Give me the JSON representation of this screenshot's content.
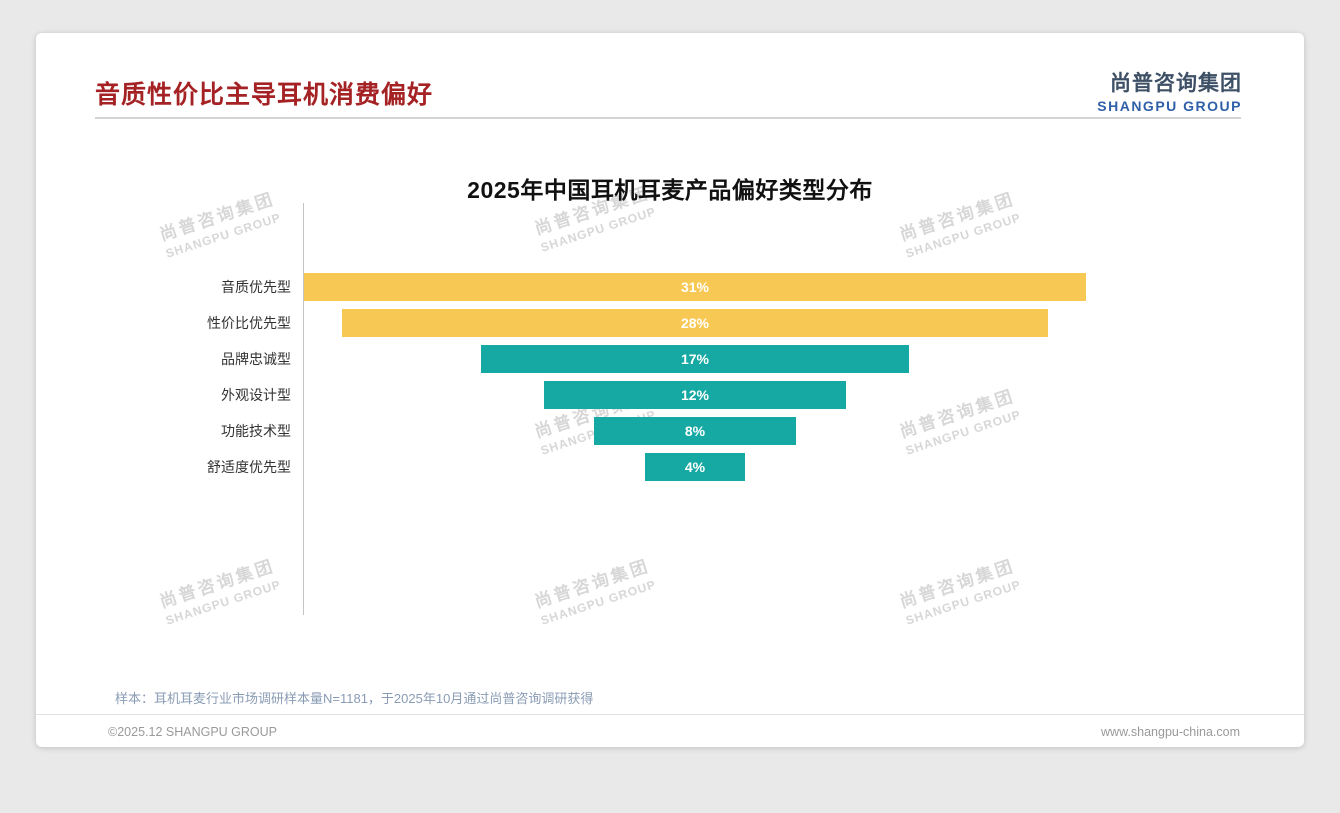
{
  "header": {
    "title": "音质性价比主导耳机消费偏好",
    "logo_cn": "尚普咨询集团",
    "logo_en": "SHANGPU GROUP"
  },
  "watermark": {
    "cn": "尚普咨询集团",
    "en": "SHANGPU GROUP"
  },
  "chart_data": {
    "type": "bar",
    "variant": "horizontal-centered-funnel",
    "title": "2025年中国耳机耳麦产品偏好类型分布",
    "categories": [
      "音质优先型",
      "性价比优先型",
      "品牌忠诚型",
      "外观设计型",
      "功能技术型",
      "舒适度优先型"
    ],
    "values": [
      31,
      28,
      17,
      12,
      8,
      4
    ],
    "value_labels": [
      "31%",
      "28%",
      "17%",
      "12%",
      "8%",
      "4%"
    ],
    "unit": "%",
    "bar_colors": [
      "#F8C855",
      "#F8C855",
      "#16A8A2",
      "#16A8A2",
      "#16A8A2",
      "#16A8A2"
    ],
    "bar_label_color": "#FFFFFF",
    "xlim": [
      0,
      31
    ],
    "grid": false,
    "legend": false
  },
  "footnote": "样本：耳机耳麦行业市场调研样本量N=1181，于2025年10月通过尚普咨询调研获得",
  "footer": {
    "left": "©2025.12 SHANGPU GROUP",
    "right": "www.shangpu-china.com"
  },
  "colors": {
    "heading_red": "#A52224",
    "logo_cn": "#3E5066",
    "logo_blue": "#2E5FA8",
    "bar_yellow": "#F8C855",
    "bar_teal": "#16A8A2",
    "footnote_blue_gray": "#8A9CB5",
    "footer_gray": "#9A9A9A",
    "page_background": "#E9E9E9"
  }
}
